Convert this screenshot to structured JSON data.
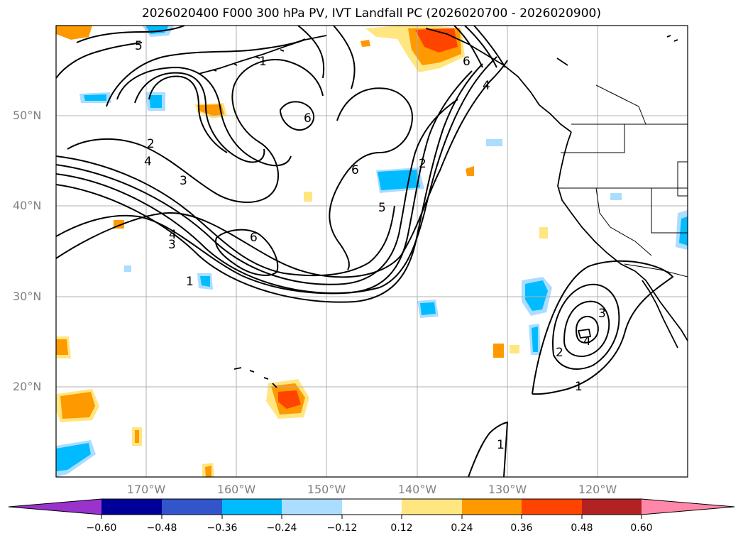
{
  "title": "2026020400 F000 300 hPa PV, IVT Landfall PC (2026020700 - 2026020900)",
  "map": {
    "lat_labels": [
      "50°N",
      "40°N",
      "30°N",
      "20°N"
    ],
    "lon_labels": [
      "170°W",
      "160°W",
      "150°W",
      "140°W",
      "130°W",
      "120°W"
    ],
    "contour_labels": [
      "5",
      "1",
      "2",
      "4",
      "3",
      "6",
      "6",
      "6",
      "2",
      "5",
      "4",
      "3",
      "1",
      "4",
      "3",
      "2",
      "1",
      "1",
      "6",
      "4"
    ]
  },
  "colorbar": {
    "ticks": [
      "−0.60",
      "−0.48",
      "−0.36",
      "−0.24",
      "−0.12",
      "0.12",
      "0.24",
      "0.36",
      "0.48",
      "0.60"
    ],
    "colors": [
      "#9933cc",
      "#000099",
      "#3355cc",
      "#00bbff",
      "#aaddff",
      "#ffffff",
      "#ffe680",
      "#ff9900",
      "#ff4400",
      "#b22222",
      "#ff88aa"
    ]
  }
}
